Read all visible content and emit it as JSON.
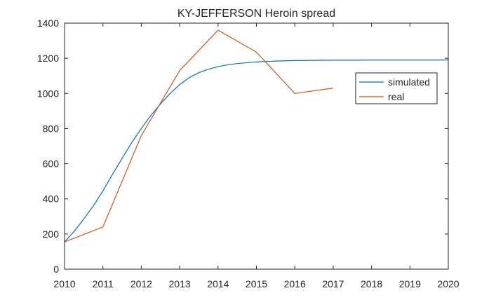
{
  "chart_data": {
    "type": "line",
    "title": "KY-JEFFERSON Heroin spread",
    "xlabel": "",
    "ylabel": "",
    "xlim": [
      2010,
      2020
    ],
    "ylim": [
      0,
      1400
    ],
    "x_ticks": [
      "2010",
      "2011",
      "2012",
      "2013",
      "2014",
      "2015",
      "2016",
      "2017",
      "2018",
      "2019",
      "2020"
    ],
    "y_ticks": [
      "0",
      "200",
      "400",
      "600",
      "800",
      "1000",
      "1200",
      "1400"
    ],
    "grid": false,
    "legend_position": "top-right",
    "series": [
      {
        "name": "simulated",
        "color": "#0072BD",
        "x": [
          2010,
          2010.25,
          2010.5,
          2010.75,
          2011,
          2011.25,
          2011.5,
          2011.75,
          2012,
          2012.25,
          2012.5,
          2012.75,
          2013,
          2013.25,
          2013.5,
          2013.75,
          2014,
          2014.25,
          2014.5,
          2014.75,
          2015,
          2015.5,
          2016,
          2016.5,
          2017,
          2017.5,
          2018,
          2018.5,
          2019,
          2019.5,
          2020
        ],
        "y": [
          155,
          215,
          285,
          360,
          445,
          540,
          630,
          720,
          800,
          875,
          940,
          1000,
          1050,
          1090,
          1118,
          1138,
          1152,
          1163,
          1170,
          1175,
          1179,
          1184,
          1187,
          1188,
          1189,
          1189,
          1190,
          1190,
          1190,
          1190,
          1190
        ]
      },
      {
        "name": "real",
        "color": "#D95319",
        "x": [
          2010,
          2011,
          2012,
          2013,
          2014,
          2015,
          2016,
          2017
        ],
        "y": [
          155,
          240,
          760,
          1130,
          1360,
          1235,
          1000,
          1030
        ]
      }
    ]
  }
}
